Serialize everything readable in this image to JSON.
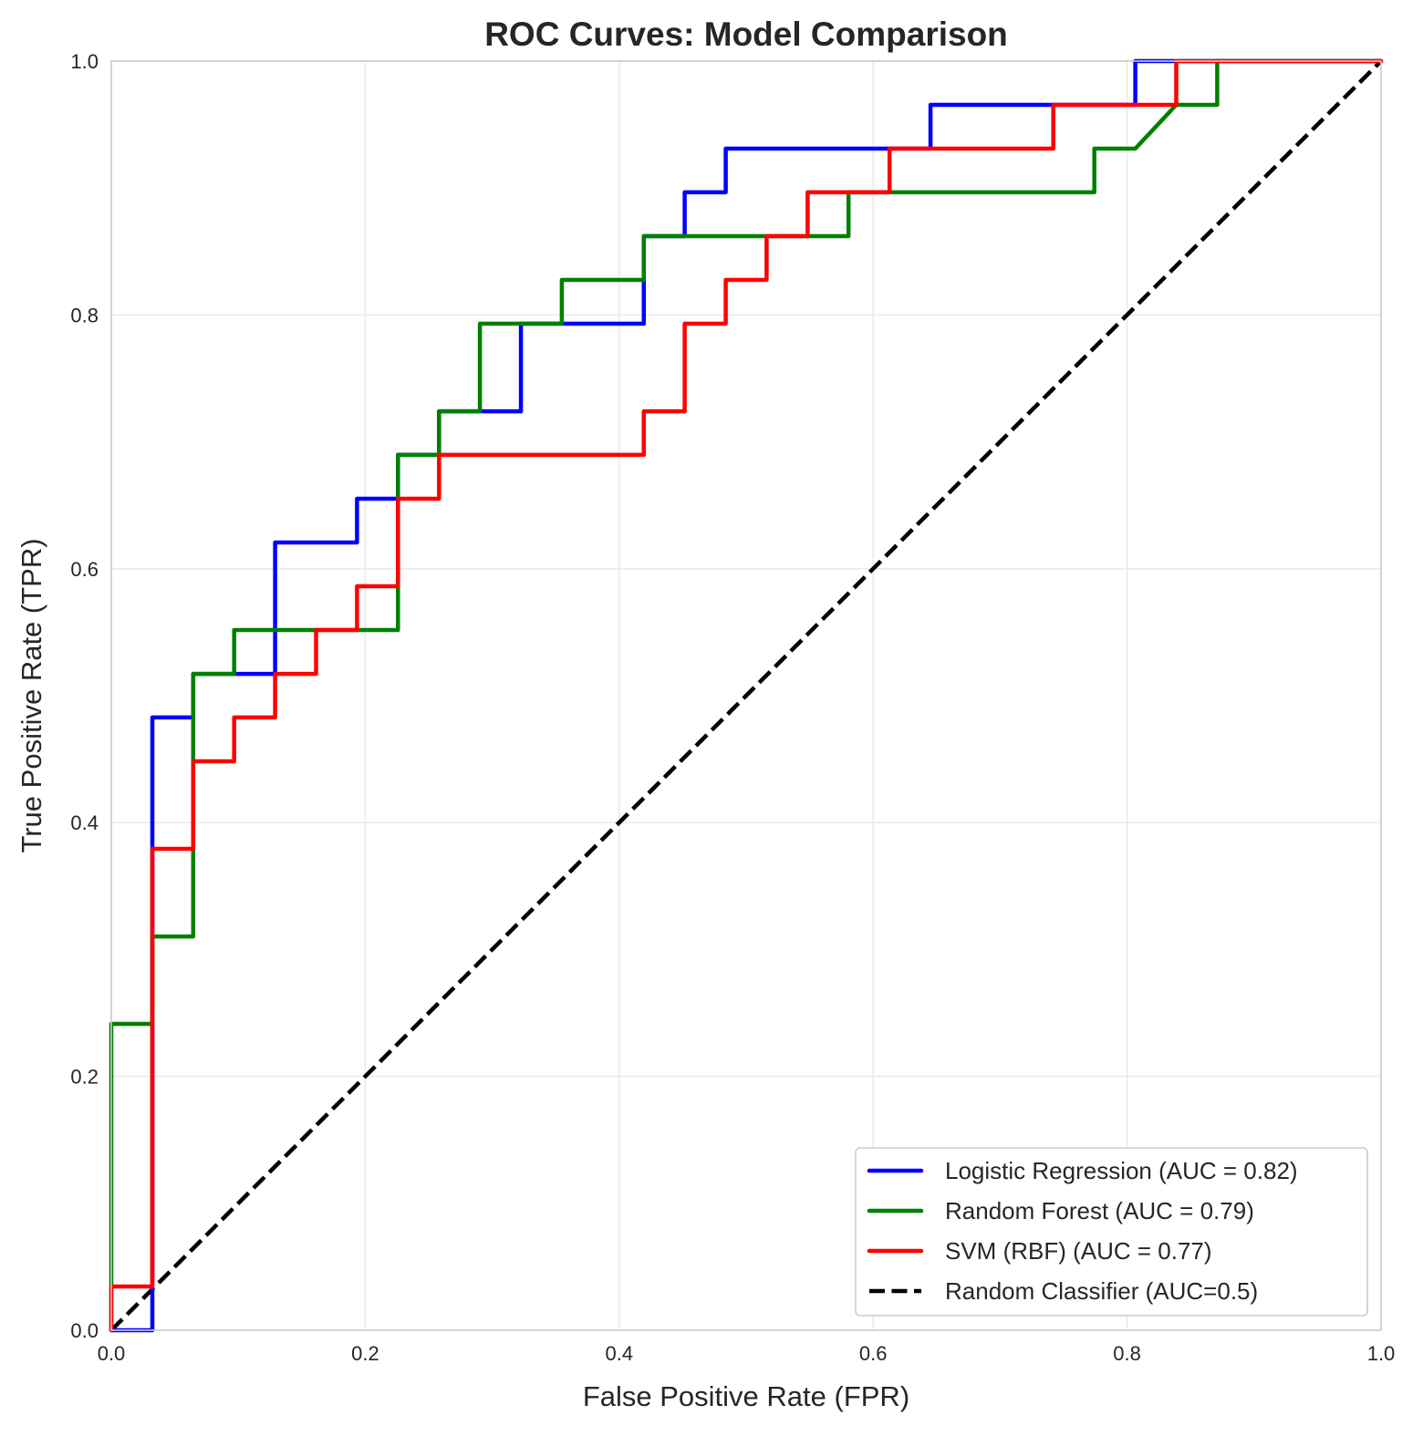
{
  "chart_data": {
    "type": "line",
    "title": "ROC Curves: Model Comparison",
    "xlabel": "False Positive Rate (FPR)",
    "ylabel": "True Positive Rate (TPR)",
    "xlim": [
      0.0,
      1.0
    ],
    "ylim": [
      0.0,
      1.0
    ],
    "grid": true,
    "legend_position": "bottom-right",
    "xticks": [
      0.0,
      0.2,
      0.4,
      0.6,
      0.8,
      1.0
    ],
    "yticks": [
      0.0,
      0.2,
      0.4,
      0.6,
      0.8,
      1.0
    ],
    "xtick_labels": [
      "0.0",
      "0.2",
      "0.4",
      "0.6",
      "0.8",
      "1.0"
    ],
    "ytick_labels": [
      "0.0",
      "0.2",
      "0.4",
      "0.6",
      "0.8",
      "1.0"
    ],
    "series": [
      {
        "name": "Logistic Regression (AUC = 0.82)",
        "color": "#0000ff",
        "style": "solid",
        "x": [
          0,
          0.0323,
          0.0323,
          0.0645,
          0.0645,
          0.129,
          0.129,
          0.1935,
          0.1935,
          0.2258,
          0.2258,
          0.2581,
          0.2581,
          0.3226,
          0.3226,
          0.4194,
          0.4194,
          0.4516,
          0.4516,
          0.4839,
          0.4839,
          0.6452,
          0.6452,
          0.8065,
          0.8065,
          1.0
        ],
        "y": [
          0,
          0,
          0.4828,
          0.4828,
          0.5172,
          0.5172,
          0.6207,
          0.6207,
          0.6552,
          0.6552,
          0.6897,
          0.6897,
          0.7241,
          0.7241,
          0.7931,
          0.7931,
          0.8621,
          0.8621,
          0.8966,
          0.8966,
          0.931,
          0.931,
          0.9655,
          0.9655,
          1.0,
          1.0
        ]
      },
      {
        "name": "Random Forest (AUC = 0.79)",
        "color": "#008000",
        "style": "solid",
        "x": [
          0,
          0,
          0.0323,
          0.0323,
          0.0645,
          0.0645,
          0.0968,
          0.0968,
          0.2258,
          0.2258,
          0.2581,
          0.2581,
          0.2903,
          0.2903,
          0.3548,
          0.3548,
          0.4194,
          0.4194,
          0.5806,
          0.5806,
          0.7742,
          0.7742,
          0.8065,
          0.8387,
          0.871,
          0.871,
          1.0
        ],
        "y": [
          0,
          0.2414,
          0.2414,
          0.3103,
          0.3103,
          0.5172,
          0.5172,
          0.5517,
          0.5517,
          0.6897,
          0.6897,
          0.7241,
          0.7241,
          0.7931,
          0.7931,
          0.8276,
          0.8276,
          0.8621,
          0.8621,
          0.8966,
          0.8966,
          0.931,
          0.931,
          0.9655,
          0.9655,
          1.0,
          1.0
        ]
      },
      {
        "name": "SVM (RBF) (AUC = 0.77)",
        "color": "#ff0000",
        "style": "solid",
        "x": [
          0,
          0,
          0.0323,
          0.0323,
          0.0645,
          0.0645,
          0.0968,
          0.0968,
          0.129,
          0.129,
          0.1613,
          0.1613,
          0.1935,
          0.1935,
          0.2258,
          0.2258,
          0.2581,
          0.2581,
          0.4194,
          0.4194,
          0.4516,
          0.4516,
          0.4839,
          0.4839,
          0.5161,
          0.5161,
          0.5484,
          0.5484,
          0.6129,
          0.6129,
          0.7419,
          0.7419,
          0.8387,
          0.8387,
          1.0
        ],
        "y": [
          0,
          0.0345,
          0.0345,
          0.3793,
          0.3793,
          0.4483,
          0.4483,
          0.4828,
          0.4828,
          0.5172,
          0.5172,
          0.5517,
          0.5517,
          0.5862,
          0.5862,
          0.6552,
          0.6552,
          0.6897,
          0.6897,
          0.7241,
          0.7241,
          0.7931,
          0.7931,
          0.8276,
          0.8276,
          0.8621,
          0.8621,
          0.8966,
          0.8966,
          0.931,
          0.931,
          0.9655,
          0.9655,
          1.0,
          1.0
        ]
      },
      {
        "name": "Random Classifier (AUC=0.5)",
        "color": "#000000",
        "style": "dashed",
        "x": [
          0,
          1
        ],
        "y": [
          0,
          1
        ]
      }
    ]
  }
}
